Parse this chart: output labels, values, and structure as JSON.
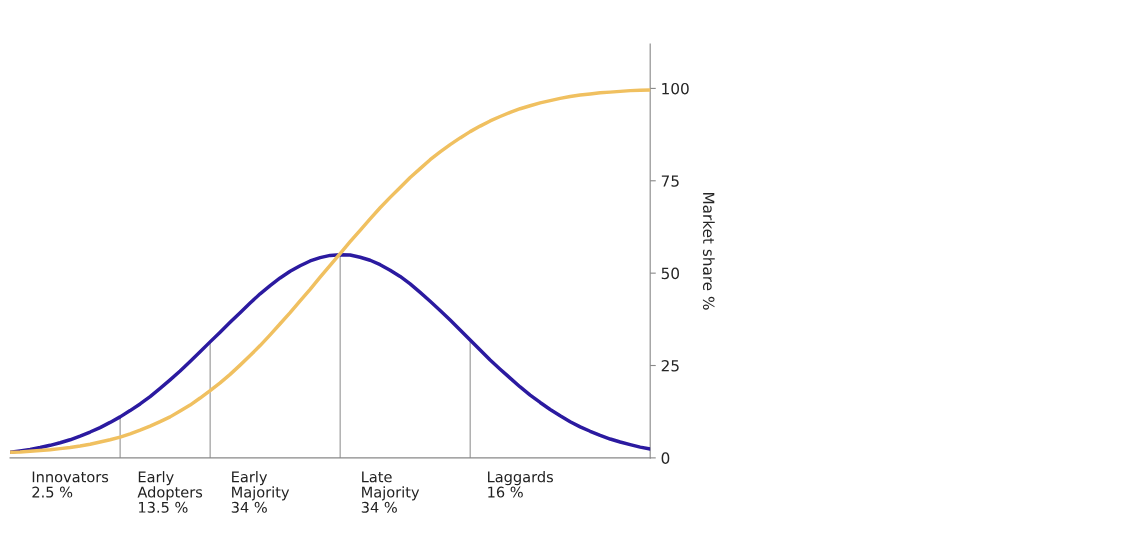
{
  "chart_data": {
    "type": "line",
    "ylabel": "Market share %",
    "ylim": [
      0,
      112
    ],
    "yticks": [
      0,
      25,
      50,
      75,
      100
    ],
    "grid": false,
    "legend": false,
    "categories": [
      null,
      null,
      null,
      null,
      null,
      null,
      "Innovators\n2.5 %",
      null,
      null,
      null,
      null,
      null,
      null,
      null,
      null,
      null,
      "Early\nAdopters\n13.5 %",
      null,
      null,
      null,
      null,
      null,
      null,
      null,
      null,
      "Early\nMajority\n34 %",
      null,
      null,
      null,
      null,
      null,
      null,
      null,
      null,
      null,
      null,
      null,
      null,
      "Late\nMajority\n34 %",
      null,
      null,
      null,
      null,
      null,
      null,
      null,
      null,
      null,
      null,
      null,
      null,
      "Laggards\n16 %",
      null,
      null,
      null,
      null,
      null,
      null,
      null,
      null,
      null,
      null,
      null,
      null,
      null
    ],
    "series": [
      {
        "type": "bar",
        "color": "#888888",
        "values": [
          null,
          null,
          null,
          null,
          null,
          null,
          null,
          null,
          null,
          null,
          null,
          11.1,
          null,
          null,
          null,
          null,
          null,
          null,
          null,
          null,
          31.4,
          null,
          null,
          null,
          null,
          null,
          null,
          null,
          null,
          null,
          null,
          null,
          null,
          55.0,
          null,
          null,
          null,
          null,
          null,
          null,
          null,
          null,
          null,
          null,
          null,
          null,
          31.9,
          null,
          null,
          null,
          null,
          null,
          null,
          null,
          null,
          null,
          null,
          null,
          null,
          null,
          null,
          null,
          null,
          null,
          null
        ]
      },
      {
        "color": "#2b1aa0",
        "values": [
          1.5,
          1.9,
          2.3,
          2.8,
          3.4,
          4.1,
          4.9,
          5.9,
          7.0,
          8.2,
          9.6,
          11.1,
          12.8,
          14.6,
          16.6,
          18.8,
          21.1,
          23.5,
          26.1,
          28.7,
          31.4,
          34.0,
          36.7,
          39.3,
          41.9,
          44.4,
          46.6,
          48.7,
          50.5,
          52.0,
          53.3,
          54.2,
          54.8,
          55.0,
          54.9,
          54.3,
          53.5,
          52.3,
          50.8,
          49.1,
          47.1,
          44.8,
          42.4,
          39.9,
          37.3,
          34.6,
          31.9,
          29.2,
          26.5,
          24.0,
          21.6,
          19.2,
          17.0,
          15.0,
          13.1,
          11.4,
          9.8,
          8.4,
          7.2,
          6.1,
          5.1,
          4.3,
          3.6,
          2.9,
          2.4
        ]
      },
      {
        "color": "#f0c060",
        "values": [
          1.5,
          1.6,
          1.8,
          2.0,
          2.2,
          2.5,
          2.8,
          3.2,
          3.7,
          4.3,
          4.9,
          5.6,
          6.5,
          7.5,
          8.6,
          9.8,
          11.1,
          12.7,
          14.3,
          16.2,
          18.2,
          20.3,
          22.6,
          25.1,
          27.7,
          30.4,
          33.3,
          36.3,
          39.3,
          42.5,
          45.6,
          48.9,
          52.1,
          55.3,
          58.5,
          61.6,
          64.7,
          67.7,
          70.5,
          73.2,
          75.9,
          78.3,
          80.7,
          82.8,
          84.8,
          86.6,
          88.3,
          89.8,
          91.2,
          92.4,
          93.5,
          94.5,
          95.3,
          96.1,
          96.7,
          97.3,
          97.8,
          98.2,
          98.5,
          98.8,
          99.0,
          99.2,
          99.4,
          99.5,
          99.6
        ]
      }
    ]
  }
}
